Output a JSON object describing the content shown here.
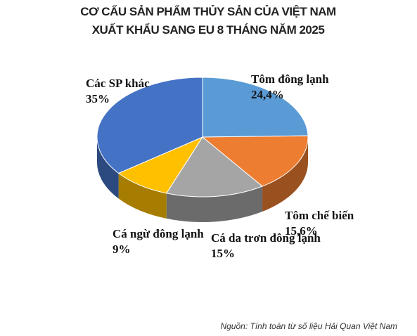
{
  "chart_data": {
    "type": "pie",
    "title": "CƠ CẤU SẢN PHẨM  THỦY SẢN CỦA VIỆT NAM",
    "subtitle": "XUẤT KHẨU SANG EU  8 THÁNG NĂM 2025",
    "categories": [
      "Tôm đông lạnh",
      "Tôm chế biến",
      "Cá da trơn đông lạnh",
      "Cá ngừ đông lạnh",
      "Các SP khác"
    ],
    "values": [
      24.4,
      15.6,
      15,
      9,
      35
    ],
    "value_labels": [
      "24,4%",
      "15,6%",
      "15%",
      "9%",
      "35%"
    ],
    "colors": [
      "#5b9bd5",
      "#ed7d31",
      "#a5a5a5",
      "#ffc000",
      "#4472c4"
    ],
    "source": "Nguồn: Tính toán từ số liệu Hải Quan Việt Nam"
  }
}
